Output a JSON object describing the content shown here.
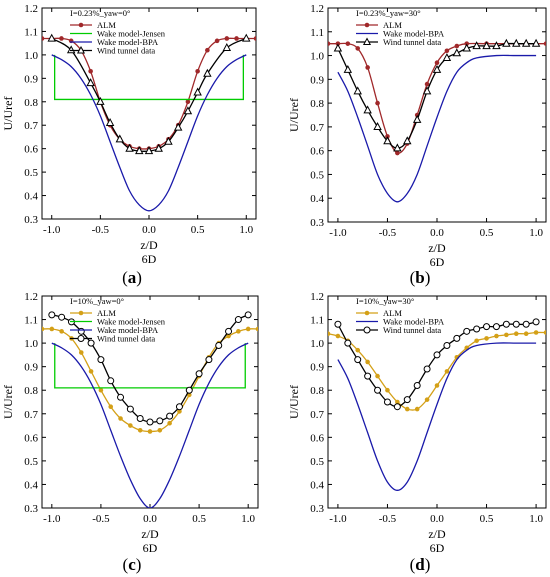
{
  "figure": {
    "panels": [
      {
        "label": "(",
        "letter": "a",
        "close": ")"
      },
      {
        "label": "(",
        "letter": "b",
        "close": ")"
      },
      {
        "label": "(",
        "letter": "c",
        "close": ")"
      },
      {
        "label": "(",
        "letter": "d",
        "close": ")"
      }
    ]
  },
  "colors": {
    "alm_a": "#a0282a",
    "alm_c": "#d4a017",
    "jensen": "#00cc00",
    "bpa": "#1a1aaa",
    "wind": "#000000"
  },
  "chart_data": [
    {
      "type": "line",
      "panel": "a",
      "title": "I=0.23%_yaw=0°",
      "xlabel": "z/D",
      "xlabel2": "6D",
      "ylabel": "U/Uref",
      "xlim": [
        -1.1,
        1.1
      ],
      "ylim": [
        0.3,
        1.2
      ],
      "xticks": [
        "-1.0",
        "-0.5",
        "0.0",
        "0.5",
        "1.0"
      ],
      "yticks": [
        "0.3",
        "0.4",
        "0.5",
        "0.6",
        "0.7",
        "0.8",
        "0.9",
        "1.0",
        "1.1",
        "1.2"
      ],
      "legend_position": "top-left",
      "series": [
        {
          "name": "ALM",
          "marker": "dot",
          "color_key": "alm_a",
          "x": [
            -1.1,
            -1.0,
            -0.9,
            -0.8,
            -0.7,
            -0.6,
            -0.5,
            -0.4,
            -0.3,
            -0.2,
            -0.1,
            0.0,
            0.1,
            0.2,
            0.3,
            0.4,
            0.5,
            0.6,
            0.7,
            0.8,
            0.9,
            1.0,
            1.1
          ],
          "y": [
            1.07,
            1.07,
            1.07,
            1.06,
            1.02,
            0.93,
            0.8,
            0.7,
            0.64,
            0.61,
            0.6,
            0.6,
            0.61,
            0.64,
            0.7,
            0.8,
            0.93,
            1.02,
            1.06,
            1.07,
            1.07,
            1.07,
            1.07
          ]
        },
        {
          "name": "Wake model-Jensen",
          "marker": "none",
          "color_key": "jensen",
          "x": [
            -0.97,
            -0.97,
            0.97,
            0.97
          ],
          "y": [
            1.0,
            0.81,
            0.81,
            1.0
          ]
        },
        {
          "name": "Wake model-BPA",
          "marker": "none",
          "color_key": "bpa",
          "x": [
            -1.0,
            -0.9,
            -0.8,
            -0.7,
            -0.6,
            -0.5,
            -0.4,
            -0.3,
            -0.2,
            -0.1,
            0.0,
            0.1,
            0.2,
            0.3,
            0.4,
            0.5,
            0.6,
            0.7,
            0.8,
            0.9,
            1.0
          ],
          "y": [
            1.0,
            0.98,
            0.95,
            0.9,
            0.83,
            0.74,
            0.63,
            0.52,
            0.42,
            0.36,
            0.335,
            0.36,
            0.42,
            0.52,
            0.63,
            0.74,
            0.83,
            0.9,
            0.95,
            0.98,
            1.0
          ]
        },
        {
          "name": "Wind tunnel data",
          "marker": "triangle",
          "color_key": "wind",
          "x": [
            -1.0,
            -0.8,
            -0.6,
            -0.5,
            -0.4,
            -0.3,
            -0.2,
            -0.1,
            0.0,
            0.1,
            0.2,
            0.3,
            0.4,
            0.5,
            0.6,
            0.8,
            1.0
          ],
          "y": [
            1.07,
            1.02,
            0.88,
            0.8,
            0.71,
            0.64,
            0.6,
            0.59,
            0.59,
            0.6,
            0.63,
            0.69,
            0.76,
            0.84,
            0.92,
            1.03,
            1.07
          ]
        }
      ]
    },
    {
      "type": "line",
      "panel": "b",
      "title": "I=0.23%_yaw=30°",
      "xlabel": "z/D",
      "xlabel2": "6D",
      "ylabel": "U/Uref",
      "xlim": [
        -1.1,
        1.1
      ],
      "ylim": [
        0.3,
        1.2
      ],
      "xticks": [
        "-1.0",
        "-0.5",
        "0.0",
        "0.5",
        "1.0"
      ],
      "yticks": [
        "0.3",
        "0.4",
        "0.5",
        "0.6",
        "0.7",
        "0.8",
        "0.9",
        "1.0",
        "1.1",
        "1.2"
      ],
      "legend_position": "top-left",
      "series": [
        {
          "name": "ALM",
          "marker": "dot",
          "color_key": "alm_a",
          "x": [
            -1.1,
            -1.0,
            -0.9,
            -0.8,
            -0.7,
            -0.6,
            -0.5,
            -0.4,
            -0.3,
            -0.2,
            -0.1,
            0.0,
            0.1,
            0.2,
            0.3,
            0.5,
            0.7,
            0.9,
            1.1
          ],
          "y": [
            1.05,
            1.05,
            1.05,
            1.03,
            0.95,
            0.8,
            0.66,
            0.59,
            0.63,
            0.75,
            0.88,
            0.97,
            1.02,
            1.04,
            1.05,
            1.05,
            1.05,
            1.05,
            1.05
          ]
        },
        {
          "name": "Wake model-BPA",
          "marker": "none",
          "color_key": "bpa",
          "x": [
            -1.0,
            -0.9,
            -0.8,
            -0.7,
            -0.6,
            -0.5,
            -0.4,
            -0.3,
            -0.2,
            -0.1,
            0.0,
            0.1,
            0.2,
            0.3,
            0.4,
            0.6,
            0.8,
            1.0
          ],
          "y": [
            0.93,
            0.85,
            0.74,
            0.62,
            0.5,
            0.42,
            0.385,
            0.42,
            0.5,
            0.62,
            0.74,
            0.85,
            0.93,
            0.97,
            0.99,
            1.0,
            1.0,
            1.0
          ]
        },
        {
          "name": "Wind tunnel data",
          "marker": "triangle",
          "color_key": "wind",
          "x": [
            -1.0,
            -0.9,
            -0.8,
            -0.7,
            -0.6,
            -0.5,
            -0.4,
            -0.3,
            -0.2,
            -0.1,
            0.0,
            0.1,
            0.2,
            0.3,
            0.4,
            0.5,
            0.6,
            0.7,
            0.8,
            0.9,
            1.0
          ],
          "y": [
            1.03,
            0.94,
            0.85,
            0.77,
            0.7,
            0.64,
            0.61,
            0.64,
            0.73,
            0.85,
            0.94,
            0.99,
            1.01,
            1.03,
            1.04,
            1.04,
            1.04,
            1.05,
            1.05,
            1.05,
            1.05
          ]
        }
      ]
    },
    {
      "type": "line",
      "panel": "c",
      "title": "I=10%_yaw=0°",
      "xlabel": "z/D",
      "xlabel2": "6D",
      "ylabel": "U/Uref",
      "xlim": [
        -1.1,
        1.1
      ],
      "ylim": [
        0.3,
        1.2
      ],
      "xticks": [
        "-1.0",
        "-0.5",
        "0.0",
        "0.5",
        "1.0"
      ],
      "yticks": [
        "0.3",
        "0.4",
        "0.5",
        "0.6",
        "0.7",
        "0.8",
        "0.9",
        "1.0",
        "1.1",
        "1.2"
      ],
      "legend_position": "top-left",
      "series": [
        {
          "name": "ALM",
          "marker": "dot",
          "color_key": "alm_c",
          "x": [
            -1.1,
            -1.0,
            -0.9,
            -0.8,
            -0.7,
            -0.6,
            -0.5,
            -0.4,
            -0.3,
            -0.2,
            -0.1,
            0.0,
            0.1,
            0.2,
            0.3,
            0.4,
            0.5,
            0.6,
            0.7,
            0.8,
            0.9,
            1.0,
            1.1
          ],
          "y": [
            1.06,
            1.06,
            1.05,
            1.02,
            0.96,
            0.88,
            0.8,
            0.73,
            0.68,
            0.65,
            0.63,
            0.625,
            0.63,
            0.66,
            0.71,
            0.78,
            0.86,
            0.94,
            1.0,
            1.03,
            1.05,
            1.06,
            1.06
          ]
        },
        {
          "name": "Wake model-Jensen",
          "marker": "none",
          "color_key": "jensen",
          "x": [
            -0.97,
            -0.97,
            0.97,
            0.97
          ],
          "y": [
            1.0,
            0.81,
            0.81,
            1.0
          ]
        },
        {
          "name": "Wake model-BPA",
          "marker": "none",
          "color_key": "bpa",
          "x": [
            -1.0,
            -0.9,
            -0.8,
            -0.7,
            -0.6,
            -0.5,
            -0.4,
            -0.3,
            -0.2,
            -0.1,
            0.0,
            0.1,
            0.2,
            0.3,
            0.4,
            0.5,
            0.6,
            0.7,
            0.8,
            0.9,
            1.0
          ],
          "y": [
            1.0,
            0.98,
            0.95,
            0.9,
            0.83,
            0.74,
            0.63,
            0.52,
            0.42,
            0.34,
            0.3,
            0.34,
            0.42,
            0.52,
            0.63,
            0.74,
            0.83,
            0.9,
            0.95,
            0.98,
            1.0
          ]
        },
        {
          "name": "Wind tunnel data",
          "marker": "circle",
          "color_key": "wind",
          "x": [
            -1.0,
            -0.9,
            -0.8,
            -0.7,
            -0.6,
            -0.5,
            -0.4,
            -0.3,
            -0.2,
            -0.1,
            0.0,
            0.1,
            0.2,
            0.3,
            0.4,
            0.5,
            0.6,
            0.7,
            0.8,
            0.9,
            1.0
          ],
          "y": [
            1.12,
            1.11,
            1.09,
            1.05,
            1.0,
            0.93,
            0.84,
            0.77,
            0.72,
            0.68,
            0.665,
            0.67,
            0.69,
            0.73,
            0.8,
            0.87,
            0.93,
            0.99,
            1.05,
            1.1,
            1.12
          ]
        }
      ]
    },
    {
      "type": "line",
      "panel": "d",
      "title": "I=10%_yaw=30°",
      "xlabel": "z/D",
      "xlabel2": "6D",
      "ylabel": "U/Uref",
      "xlim": [
        -1.1,
        1.1
      ],
      "ylim": [
        0.3,
        1.2
      ],
      "xticks": [
        "-1.0",
        "-0.5",
        "0.0",
        "0.5",
        "1.0"
      ],
      "yticks": [
        "0.3",
        "0.4",
        "0.5",
        "0.6",
        "0.7",
        "0.8",
        "0.9",
        "1.0",
        "1.1",
        "1.2"
      ],
      "legend_position": "top-left",
      "series": [
        {
          "name": "ALM",
          "marker": "dot",
          "color_key": "alm_c",
          "x": [
            -1.1,
            -1.0,
            -0.9,
            -0.8,
            -0.7,
            -0.6,
            -0.5,
            -0.4,
            -0.3,
            -0.2,
            -0.1,
            0.0,
            0.1,
            0.2,
            0.3,
            0.4,
            0.5,
            0.6,
            0.7,
            0.8,
            0.9,
            1.0,
            1.1
          ],
          "y": [
            1.04,
            1.03,
            1.01,
            0.97,
            0.92,
            0.86,
            0.8,
            0.75,
            0.72,
            0.72,
            0.76,
            0.82,
            0.88,
            0.94,
            0.98,
            1.01,
            1.02,
            1.03,
            1.035,
            1.04,
            1.04,
            1.045,
            1.045
          ]
        },
        {
          "name": "Wake model-BPA",
          "marker": "none",
          "color_key": "bpa",
          "x": [
            -1.0,
            -0.9,
            -0.8,
            -0.7,
            -0.6,
            -0.5,
            -0.4,
            -0.3,
            -0.2,
            -0.1,
            0.0,
            0.1,
            0.2,
            0.3,
            0.4,
            0.6,
            0.8,
            1.0
          ],
          "y": [
            0.93,
            0.85,
            0.74,
            0.62,
            0.5,
            0.41,
            0.375,
            0.41,
            0.5,
            0.62,
            0.74,
            0.85,
            0.93,
            0.97,
            0.99,
            1.0,
            1.0,
            1.0
          ]
        },
        {
          "name": "Wind tunnel data",
          "marker": "circle",
          "color_key": "wind",
          "x": [
            -1.0,
            -0.9,
            -0.8,
            -0.7,
            -0.6,
            -0.5,
            -0.4,
            -0.3,
            -0.2,
            -0.1,
            0.0,
            0.1,
            0.2,
            0.3,
            0.4,
            0.5,
            0.6,
            0.7,
            0.8,
            0.9,
            1.0
          ],
          "y": [
            1.08,
            1.0,
            0.93,
            0.86,
            0.8,
            0.75,
            0.73,
            0.76,
            0.82,
            0.89,
            0.95,
            0.99,
            1.02,
            1.05,
            1.06,
            1.07,
            1.07,
            1.08,
            1.08,
            1.08,
            1.09
          ]
        }
      ]
    }
  ]
}
